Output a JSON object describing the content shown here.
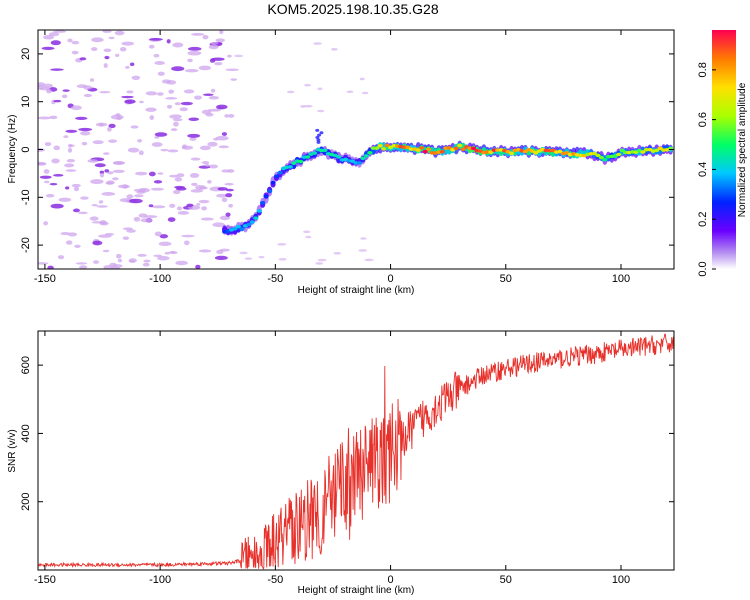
{
  "title": "KOM5.2025.198.10.35.G28",
  "colors": {
    "snr_line": "#e8302a",
    "noise_blob": "#cfa6ee",
    "noise_core": "#8a2be2"
  },
  "chart_data": [
    {
      "type": "heatmap",
      "xlabel": "Height of straight line (km)",
      "ylabel": "Frequency (Hz)",
      "xlim": [
        -153,
        123
      ],
      "ylim": [
        -25,
        25
      ],
      "x_ticks": [
        -150,
        -100,
        -50,
        0,
        50,
        100
      ],
      "y_ticks": [
        -20,
        -10,
        0,
        10,
        20
      ],
      "colormap": "rainbow (violet to red)",
      "ridge": {
        "x": [
          -70,
          -62,
          -58,
          -54,
          -50,
          -46,
          -42,
          -38,
          -34,
          -30,
          -26,
          -22,
          -18,
          -14,
          -10,
          -6,
          0,
          10,
          20,
          30,
          40,
          50,
          60,
          70,
          80,
          88,
          94,
          100,
          110,
          120
        ],
        "y": [
          -17,
          -16,
          -14,
          -10,
          -6,
          -4,
          -3,
          -2,
          -1,
          0,
          -1,
          -2,
          -2,
          -3,
          -1,
          0.5,
          0.5,
          0.3,
          -0.5,
          0.5,
          -0.3,
          -0.5,
          -0.3,
          -0.5,
          -0.8,
          -1,
          -2,
          -0.5,
          -0.3,
          0
        ],
        "amplitude": [
          0.35,
          0.45,
          0.4,
          0.35,
          0.3,
          0.4,
          0.45,
          0.5,
          0.45,
          0.5,
          0.45,
          0.5,
          0.4,
          0.35,
          0.55,
          0.75,
          0.85,
          0.9,
          0.95,
          0.9,
          0.95,
          0.85,
          0.9,
          0.85,
          0.8,
          0.7,
          0.6,
          0.65,
          0.7,
          0.7
        ]
      },
      "colorbar": {
        "label": "Normalized spectral amplitude",
        "range": [
          0,
          0.96
        ],
        "ticks": [
          0.0,
          0.2,
          0.4,
          0.6,
          0.8
        ]
      }
    },
    {
      "type": "line",
      "xlabel": "Height of straight line (km)",
      "ylabel": "SNR (v/v)",
      "xlim": [
        -153,
        123
      ],
      "ylim": [
        0,
        700
      ],
      "x_ticks": [
        -150,
        -100,
        -50,
        0,
        50,
        100
      ],
      "y_ticks": [
        200,
        400,
        600
      ],
      "trend": {
        "x": [
          -153,
          -100,
          -70,
          -60,
          -50,
          -40,
          -30,
          -20,
          -10,
          0,
          10,
          20,
          30,
          40,
          50,
          60,
          70,
          80,
          90,
          100,
          110,
          123
        ],
        "y": [
          15,
          15,
          20,
          35,
          80,
          130,
          180,
          230,
          290,
          340,
          420,
          480,
          530,
          570,
          590,
          605,
          615,
          625,
          635,
          645,
          655,
          665
        ]
      }
    }
  ]
}
